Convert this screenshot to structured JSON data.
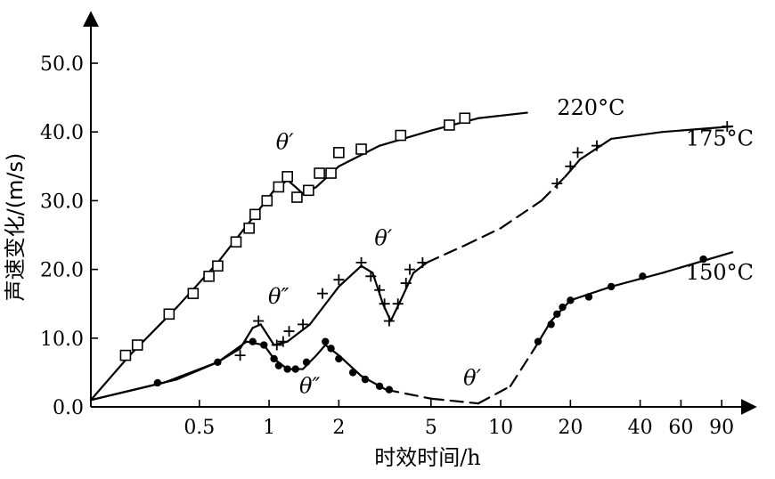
{
  "chart_data": {
    "type": "line",
    "title": "",
    "xlabel": "时效时间/h",
    "ylabel": "声速变化/(m/s)",
    "x_scale": "log",
    "xlim": [
      0.17,
      120
    ],
    "ylim": [
      0,
      55
    ],
    "x_ticks": [
      {
        "value": 0.5,
        "label": "0.5"
      },
      {
        "value": 1,
        "label": "1"
      },
      {
        "value": 2,
        "label": "2"
      },
      {
        "value": 5,
        "label": "5"
      },
      {
        "value": 10,
        "label": "10"
      },
      {
        "value": 20,
        "label": "20"
      },
      {
        "value": 40,
        "label": "40"
      },
      {
        "value": 60,
        "label": "60"
      },
      {
        "value": 90,
        "label": "90"
      }
    ],
    "y_ticks": [
      {
        "value": 0,
        "label": "0.0"
      },
      {
        "value": 10,
        "label": "10.0"
      },
      {
        "value": 20,
        "label": "20.0"
      },
      {
        "value": 30,
        "label": "30.0"
      },
      {
        "value": 40,
        "label": "40.0"
      },
      {
        "value": 50,
        "label": "50.0"
      }
    ],
    "grid": false,
    "legend": "none",
    "series": [
      {
        "name": "220°C",
        "marker": "square",
        "curve": [
          {
            "x": 0.17,
            "y": 1.0,
            "dashed": false
          },
          {
            "x": 0.25,
            "y": 7.5,
            "dashed": false
          },
          {
            "x": 0.4,
            "y": 14.5,
            "dashed": false
          },
          {
            "x": 0.6,
            "y": 21.0,
            "dashed": false
          },
          {
            "x": 0.85,
            "y": 27.5,
            "dashed": false
          },
          {
            "x": 1.05,
            "y": 31.5,
            "dashed": false
          },
          {
            "x": 1.2,
            "y": 33.0,
            "dashed": false
          },
          {
            "x": 1.3,
            "y": 32.0,
            "dashed": false
          },
          {
            "x": 1.4,
            "y": 31.0,
            "dashed": false
          },
          {
            "x": 1.6,
            "y": 32.0,
            "dashed": false
          },
          {
            "x": 2.0,
            "y": 35.0,
            "dashed": false
          },
          {
            "x": 3.0,
            "y": 38.0,
            "dashed": false
          },
          {
            "x": 5.0,
            "y": 40.2,
            "dashed": false
          },
          {
            "x": 8.0,
            "y": 42.0,
            "dashed": false
          },
          {
            "x": 13.0,
            "y": 42.8,
            "dashed": false
          }
        ],
        "points": [
          {
            "x": 0.24,
            "y": 7.5
          },
          {
            "x": 0.27,
            "y": 9.0
          },
          {
            "x": 0.37,
            "y": 13.5
          },
          {
            "x": 0.47,
            "y": 16.5
          },
          {
            "x": 0.55,
            "y": 19.0
          },
          {
            "x": 0.6,
            "y": 20.5
          },
          {
            "x": 0.72,
            "y": 24.0
          },
          {
            "x": 0.82,
            "y": 26.0
          },
          {
            "x": 0.87,
            "y": 28.0
          },
          {
            "x": 0.98,
            "y": 30.0
          },
          {
            "x": 1.1,
            "y": 32.0
          },
          {
            "x": 1.2,
            "y": 33.5
          },
          {
            "x": 1.32,
            "y": 30.5
          },
          {
            "x": 1.48,
            "y": 31.5
          },
          {
            "x": 1.65,
            "y": 34.0
          },
          {
            "x": 1.85,
            "y": 34.0
          },
          {
            "x": 2.0,
            "y": 37.0
          },
          {
            "x": 2.5,
            "y": 37.5
          },
          {
            "x": 3.7,
            "y": 39.5
          },
          {
            "x": 6.0,
            "y": 41.0
          },
          {
            "x": 7.0,
            "y": 42.0
          }
        ]
      },
      {
        "name": "175°C",
        "marker": "plus",
        "curve": [
          {
            "x": 0.17,
            "y": 1.0,
            "dashed": false
          },
          {
            "x": 0.4,
            "y": 4.0,
            "dashed": false
          },
          {
            "x": 0.6,
            "y": 6.5,
            "dashed": false
          },
          {
            "x": 0.75,
            "y": 8.5,
            "dashed": false
          },
          {
            "x": 0.85,
            "y": 11.5,
            "dashed": false
          },
          {
            "x": 0.92,
            "y": 12.0,
            "dashed": false
          },
          {
            "x": 1.05,
            "y": 9.0,
            "dashed": false
          },
          {
            "x": 1.2,
            "y": 9.5,
            "dashed": false
          },
          {
            "x": 1.5,
            "y": 12.0,
            "dashed": false
          },
          {
            "x": 2.0,
            "y": 17.5,
            "dashed": false
          },
          {
            "x": 2.5,
            "y": 20.5,
            "dashed": false
          },
          {
            "x": 2.8,
            "y": 19.5,
            "dashed": false
          },
          {
            "x": 3.1,
            "y": 15.0,
            "dashed": false
          },
          {
            "x": 3.35,
            "y": 12.5,
            "dashed": false
          },
          {
            "x": 3.7,
            "y": 15.5,
            "dashed": false
          },
          {
            "x": 4.2,
            "y": 19.5,
            "dashed": false
          },
          {
            "x": 4.8,
            "y": 21.0,
            "dashed": false
          },
          {
            "x": 7.0,
            "y": 23.5,
            "dashed": true
          },
          {
            "x": 10.0,
            "y": 26.0,
            "dashed": true
          },
          {
            "x": 15.0,
            "y": 30.0,
            "dashed": true
          },
          {
            "x": 19.0,
            "y": 33.5,
            "dashed": true
          },
          {
            "x": 22.0,
            "y": 36.0,
            "dashed": false
          },
          {
            "x": 30.0,
            "y": 39.0,
            "dashed": false
          },
          {
            "x": 50.0,
            "y": 40.0,
            "dashed": false
          },
          {
            "x": 100.0,
            "y": 40.8,
            "dashed": false
          }
        ],
        "points": [
          {
            "x": 0.75,
            "y": 7.5
          },
          {
            "x": 0.9,
            "y": 12.5
          },
          {
            "x": 1.08,
            "y": 9.0
          },
          {
            "x": 1.15,
            "y": 9.5
          },
          {
            "x": 1.22,
            "y": 11.0
          },
          {
            "x": 1.4,
            "y": 12.0
          },
          {
            "x": 1.7,
            "y": 16.5
          },
          {
            "x": 2.0,
            "y": 18.5
          },
          {
            "x": 2.5,
            "y": 21.0
          },
          {
            "x": 2.75,
            "y": 19.0
          },
          {
            "x": 3.0,
            "y": 17.0
          },
          {
            "x": 3.15,
            "y": 15.0
          },
          {
            "x": 3.3,
            "y": 12.5
          },
          {
            "x": 3.6,
            "y": 15.0
          },
          {
            "x": 3.9,
            "y": 18.0
          },
          {
            "x": 4.05,
            "y": 20.0
          },
          {
            "x": 4.6,
            "y": 21.0
          },
          {
            "x": 17.5,
            "y": 32.5
          },
          {
            "x": 20.0,
            "y": 35.0
          },
          {
            "x": 21.5,
            "y": 37.0
          },
          {
            "x": 26.0,
            "y": 38.0
          },
          {
            "x": 95.0,
            "y": 40.8
          }
        ]
      },
      {
        "name": "150°C",
        "marker": "dot",
        "curve": [
          {
            "x": 0.17,
            "y": 1.0,
            "dashed": false
          },
          {
            "x": 0.35,
            "y": 3.5,
            "dashed": false
          },
          {
            "x": 0.6,
            "y": 6.5,
            "dashed": false
          },
          {
            "x": 0.8,
            "y": 9.5,
            "dashed": false
          },
          {
            "x": 0.95,
            "y": 9.0,
            "dashed": false
          },
          {
            "x": 1.05,
            "y": 7.0,
            "dashed": false
          },
          {
            "x": 1.2,
            "y": 5.5,
            "dashed": false
          },
          {
            "x": 1.4,
            "y": 5.5,
            "dashed": false
          },
          {
            "x": 1.6,
            "y": 7.5,
            "dashed": false
          },
          {
            "x": 1.75,
            "y": 9.0,
            "dashed": false
          },
          {
            "x": 2.0,
            "y": 7.5,
            "dashed": false
          },
          {
            "x": 2.5,
            "y": 4.5,
            "dashed": false
          },
          {
            "x": 3.2,
            "y": 2.5,
            "dashed": false
          },
          {
            "x": 5.0,
            "y": 1.2,
            "dashed": true
          },
          {
            "x": 8.0,
            "y": 0.5,
            "dashed": true
          },
          {
            "x": 11.0,
            "y": 3.0,
            "dashed": true
          },
          {
            "x": 14.0,
            "y": 8.5,
            "dashed": true
          },
          {
            "x": 16.5,
            "y": 12.5,
            "dashed": false
          },
          {
            "x": 20.0,
            "y": 15.5,
            "dashed": false
          },
          {
            "x": 30.0,
            "y": 17.5,
            "dashed": false
          },
          {
            "x": 50.0,
            "y": 19.5,
            "dashed": false
          },
          {
            "x": 100.0,
            "y": 22.5,
            "dashed": false
          }
        ],
        "points": [
          {
            "x": 0.33,
            "y": 3.5
          },
          {
            "x": 0.6,
            "y": 6.5
          },
          {
            "x": 0.85,
            "y": 9.5
          },
          {
            "x": 0.95,
            "y": 9.0
          },
          {
            "x": 1.05,
            "y": 7.0
          },
          {
            "x": 1.1,
            "y": 6.0
          },
          {
            "x": 1.2,
            "y": 5.5
          },
          {
            "x": 1.3,
            "y": 5.5
          },
          {
            "x": 1.45,
            "y": 6.5
          },
          {
            "x": 1.75,
            "y": 9.5
          },
          {
            "x": 1.85,
            "y": 8.5
          },
          {
            "x": 2.0,
            "y": 7.0
          },
          {
            "x": 2.3,
            "y": 5.0
          },
          {
            "x": 2.6,
            "y": 4.0
          },
          {
            "x": 3.0,
            "y": 3.0
          },
          {
            "x": 3.3,
            "y": 2.5
          },
          {
            "x": 14.5,
            "y": 9.5
          },
          {
            "x": 16.5,
            "y": 12.0
          },
          {
            "x": 17.5,
            "y": 13.5
          },
          {
            "x": 18.5,
            "y": 14.5
          },
          {
            "x": 20.0,
            "y": 15.5
          },
          {
            "x": 24.0,
            "y": 16.0
          },
          {
            "x": 30.0,
            "y": 17.5
          },
          {
            "x": 41.0,
            "y": 19.0
          },
          {
            "x": 75.0,
            "y": 21.5
          }
        ]
      }
    ],
    "annotations": [
      {
        "text": "θ′",
        "x": 1.07,
        "y": 37.5
      },
      {
        "text": "θ″",
        "x": 0.99,
        "y": 15.0
      },
      {
        "text": "θ′",
        "x": 2.85,
        "y": 23.5
      },
      {
        "text": "θ″",
        "x": 1.35,
        "y": 2.0
      },
      {
        "text": "θ′",
        "x": 6.9,
        "y": 3.2
      }
    ],
    "series_labels": [
      {
        "series": "220°C",
        "text": "220°C",
        "x": 17.5,
        "y": 42.5
      },
      {
        "series": "175°C",
        "text": "175°C",
        "x": 125.0,
        "y": 38.0
      },
      {
        "series": "150°C",
        "text": "150°C",
        "x": 125.0,
        "y": 18.5
      }
    ]
  }
}
